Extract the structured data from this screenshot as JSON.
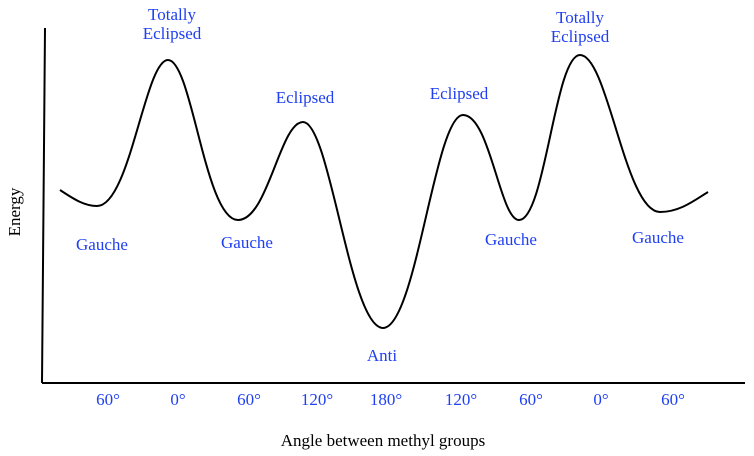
{
  "axes": {
    "y_label": "Energy",
    "x_label": "Angle between methyl groups"
  },
  "x_ticks": [
    "60°",
    "0°",
    "60°",
    "120°",
    "180°",
    "120°",
    "60°",
    "0°",
    "60°"
  ],
  "annotations": [
    {
      "lines": [
        "Totally",
        "Eclipsed"
      ]
    },
    {
      "lines": [
        "Eclipsed"
      ]
    },
    {
      "lines": [
        "Eclipsed"
      ]
    },
    {
      "lines": [
        "Totally",
        "Eclipsed"
      ]
    },
    {
      "lines": [
        "Gauche"
      ]
    },
    {
      "lines": [
        "Gauche"
      ]
    },
    {
      "lines": [
        "Gauche"
      ]
    },
    {
      "lines": [
        "Gauche"
      ]
    },
    {
      "lines": [
        "Anti"
      ]
    }
  ]
}
